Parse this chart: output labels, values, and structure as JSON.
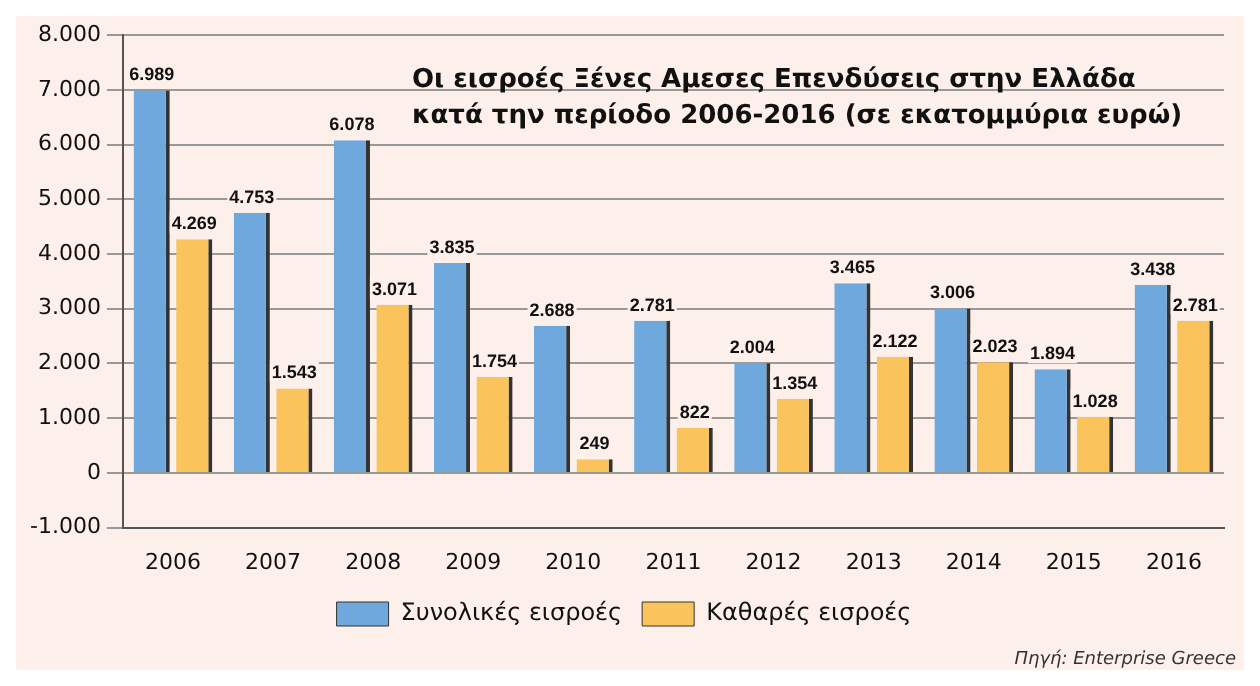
{
  "chart_data": {
    "type": "bar",
    "title": "Οι εισροές Ξένες Αμεσες Επενδύσεις στην Ελλάδα κατά την περίοδο 2006-2016 (σε εκατομμύρια ευρώ)",
    "categories": [
      "2006",
      "2007",
      "2008",
      "2009",
      "2010",
      "2011",
      "2012",
      "2013",
      "2014",
      "2015",
      "2016"
    ],
    "series": [
      {
        "name": "Συνολικές εισροές",
        "color": "#6fa8dc",
        "values": [
          6989,
          4753,
          6078,
          3835,
          2688,
          2781,
          2004,
          3465,
          3006,
          1894,
          3438
        ],
        "value_labels": [
          "6.989",
          "4.753",
          "6.078",
          "3.835",
          "2.688",
          "2.781",
          "2.004",
          "3.465",
          "3.006",
          "1.894",
          "3.438"
        ]
      },
      {
        "name": "Καθαρές εισροές",
        "color": "#fbc35c",
        "values": [
          4269,
          1543,
          3071,
          1754,
          249,
          822,
          1354,
          2122,
          2023,
          1028,
          2781
        ],
        "value_labels": [
          "4.269",
          "1.543",
          "3.071",
          "1.754",
          "249",
          "822",
          "1.354",
          "2.122",
          "2.023",
          "1.028",
          "2.781"
        ]
      }
    ],
    "ylim": [
      -1000,
      8000
    ],
    "yticks": [
      {
        "value": -1000,
        "label": "-1.000"
      },
      0,
      {
        "value": 1000,
        "label": "1.000"
      },
      {
        "value": 2000,
        "label": "2.000"
      },
      {
        "value": 3000,
        "label": "3.000"
      },
      {
        "value": 4000,
        "label": "4.000"
      },
      {
        "value": 5000,
        "label": "5.000"
      },
      {
        "value": 6000,
        "label": "6.000"
      },
      {
        "value": 7000,
        "label": "7.000"
      },
      {
        "value": 8000,
        "label": "8.000"
      }
    ],
    "grid": "y",
    "legend": "bottom",
    "annotations": [
      "Πηγή: Enterprise Greece"
    ]
  }
}
